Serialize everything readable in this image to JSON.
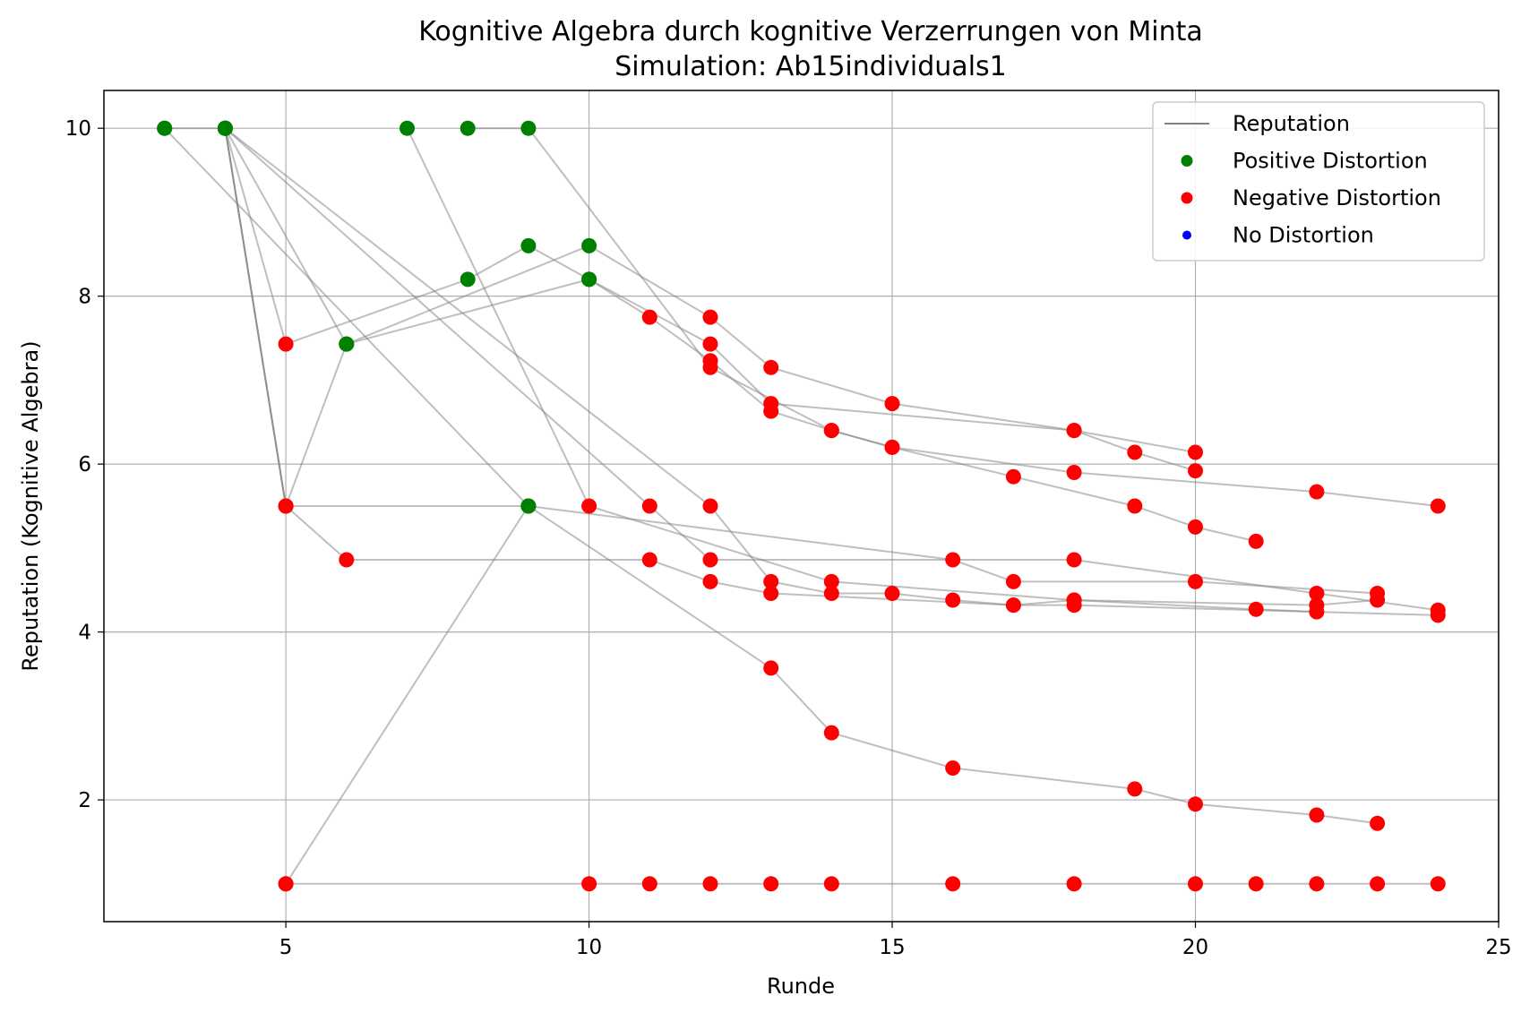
{
  "chart_data": {
    "type": "scatter",
    "title": "Kognitive Algebra durch kognitive Verzerrungen von Minta",
    "subtitle": "Simulation: Ab15individuals1",
    "xlabel": "Runde",
    "ylabel": "Reputation (Kognitive Algebra)",
    "xlim": [
      2,
      25
    ],
    "ylim": [
      0.55,
      10.45
    ],
    "xticks": [
      5,
      10,
      15,
      20,
      25
    ],
    "yticks": [
      2,
      4,
      6,
      8,
      10
    ],
    "grid": true,
    "legend_position": "top-right",
    "legend": [
      {
        "label": "Reputation",
        "kind": "line",
        "color": "#808080"
      },
      {
        "label": "Positive Distortion",
        "kind": "marker",
        "color": "#008000"
      },
      {
        "label": "Negative Distortion",
        "kind": "marker",
        "color": "#ff0000"
      },
      {
        "label": "No Distortion",
        "kind": "marker",
        "color": "#0000ff"
      }
    ],
    "series": [
      {
        "name": "traj-1",
        "points": [
          [
            3,
            10,
            "pos"
          ],
          [
            4,
            10,
            "pos"
          ],
          [
            5,
            5.5,
            "neg"
          ],
          [
            6,
            4.86,
            "neg"
          ],
          [
            11,
            4.86,
            "neg"
          ],
          [
            12,
            4.6,
            "neg"
          ],
          [
            13,
            4.46,
            "neg"
          ],
          [
            17,
            4.32,
            "neg"
          ],
          [
            18,
            4.32,
            "neg"
          ],
          [
            24,
            4.2,
            "neg"
          ]
        ]
      },
      {
        "name": "traj-2",
        "points": [
          [
            3,
            10,
            "pos"
          ],
          [
            9,
            5.5,
            "pos"
          ],
          [
            13,
            3.57,
            "neg"
          ],
          [
            14,
            2.8,
            "neg"
          ],
          [
            16,
            2.38,
            "neg"
          ],
          [
            19,
            2.13,
            "neg"
          ],
          [
            20,
            1.95,
            "neg"
          ],
          [
            22,
            1.82,
            "neg"
          ],
          [
            23,
            1.72,
            "neg"
          ]
        ]
      },
      {
        "name": "traj-3",
        "points": [
          [
            4,
            10,
            "pos"
          ],
          [
            5,
            5.5,
            "neg"
          ],
          [
            9,
            5.5,
            "pos"
          ],
          [
            16,
            4.86,
            "neg"
          ],
          [
            17,
            4.6,
            "neg"
          ],
          [
            20,
            4.6,
            "neg"
          ],
          [
            23,
            4.46,
            "neg"
          ]
        ]
      },
      {
        "name": "traj-4",
        "points": [
          [
            4,
            10,
            "pos"
          ],
          [
            5,
            7.43,
            "neg"
          ],
          [
            8,
            8.2,
            "pos"
          ],
          [
            9,
            8.6,
            "pos"
          ],
          [
            10,
            8.2,
            "pos"
          ],
          [
            11,
            7.75,
            "neg"
          ],
          [
            12,
            7.23,
            "neg"
          ],
          [
            13,
            6.63,
            "neg"
          ],
          [
            14,
            6.4,
            "neg"
          ],
          [
            15,
            6.2,
            "neg"
          ],
          [
            17,
            5.85,
            "neg"
          ],
          [
            19,
            5.5,
            "neg"
          ],
          [
            20,
            5.25,
            "neg"
          ],
          [
            21,
            5.08,
            "neg"
          ]
        ]
      },
      {
        "name": "traj-5",
        "points": [
          [
            4,
            10,
            "pos"
          ],
          [
            5,
            5.5,
            "neg"
          ],
          [
            6,
            7.43,
            "pos"
          ],
          [
            10,
            8.6,
            "pos"
          ],
          [
            12,
            7.75,
            "neg"
          ],
          [
            13,
            7.15,
            "neg"
          ],
          [
            15,
            6.72,
            "neg"
          ],
          [
            18,
            6.4,
            "neg"
          ],
          [
            20,
            6.14,
            "neg"
          ]
        ]
      },
      {
        "name": "traj-6",
        "points": [
          [
            4,
            10,
            "pos"
          ],
          [
            6,
            7.43,
            "pos"
          ],
          [
            10,
            8.2,
            "pos"
          ],
          [
            12,
            7.43,
            "neg"
          ],
          [
            13,
            6.72,
            "neg"
          ],
          [
            18,
            6.4,
            "neg"
          ],
          [
            19,
            6.14,
            "neg"
          ],
          [
            20,
            5.92,
            "neg"
          ]
        ]
      },
      {
        "name": "traj-7",
        "points": [
          [
            4,
            10,
            "pos"
          ],
          [
            11,
            5.5,
            "neg"
          ],
          [
            12,
            4.86,
            "neg"
          ],
          [
            18,
            4.86,
            "neg"
          ],
          [
            22,
            4.46,
            "neg"
          ],
          [
            24,
            4.26,
            "neg"
          ]
        ]
      },
      {
        "name": "traj-8",
        "points": [
          [
            4,
            10,
            "pos"
          ],
          [
            12,
            5.5,
            "neg"
          ],
          [
            13,
            4.6,
            "neg"
          ],
          [
            14,
            4.46,
            "neg"
          ],
          [
            15,
            4.46,
            "neg"
          ],
          [
            16,
            4.38,
            "neg"
          ],
          [
            17,
            4.32,
            "neg"
          ],
          [
            18,
            4.38,
            "neg"
          ],
          [
            22,
            4.32,
            "neg"
          ],
          [
            23,
            4.38,
            "neg"
          ]
        ]
      },
      {
        "name": "traj-9",
        "points": [
          [
            7,
            10,
            "pos"
          ],
          [
            10,
            5.5,
            "neg"
          ],
          [
            14,
            4.6,
            "neg"
          ],
          [
            18,
            4.38,
            "neg"
          ],
          [
            21,
            4.27,
            "neg"
          ],
          [
            22,
            4.24,
            "neg"
          ]
        ]
      },
      {
        "name": "traj-10",
        "points": [
          [
            8,
            10,
            "pos"
          ],
          [
            9,
            10,
            "pos"
          ],
          [
            12,
            7.15,
            "neg"
          ],
          [
            14,
            6.4,
            "neg"
          ],
          [
            15,
            6.2,
            "neg"
          ],
          [
            18,
            5.9,
            "neg"
          ],
          [
            22,
            5.67,
            "neg"
          ],
          [
            24,
            5.5,
            "neg"
          ]
        ]
      },
      {
        "name": "traj-11",
        "points": [
          [
            5,
            1,
            "neg"
          ],
          [
            9,
            5.5,
            "pos"
          ]
        ]
      },
      {
        "name": "traj-12",
        "points": [
          [
            5,
            1,
            "neg"
          ],
          [
            10,
            1,
            "neg"
          ],
          [
            11,
            1,
            "neg"
          ],
          [
            12,
            1,
            "neg"
          ],
          [
            13,
            1,
            "neg"
          ],
          [
            14,
            1,
            "neg"
          ],
          [
            16,
            1,
            "neg"
          ],
          [
            18,
            1,
            "neg"
          ],
          [
            20,
            1,
            "neg"
          ],
          [
            21,
            1,
            "neg"
          ],
          [
            22,
            1,
            "neg"
          ],
          [
            23,
            1,
            "neg"
          ],
          [
            24,
            1,
            "neg"
          ]
        ]
      }
    ]
  }
}
